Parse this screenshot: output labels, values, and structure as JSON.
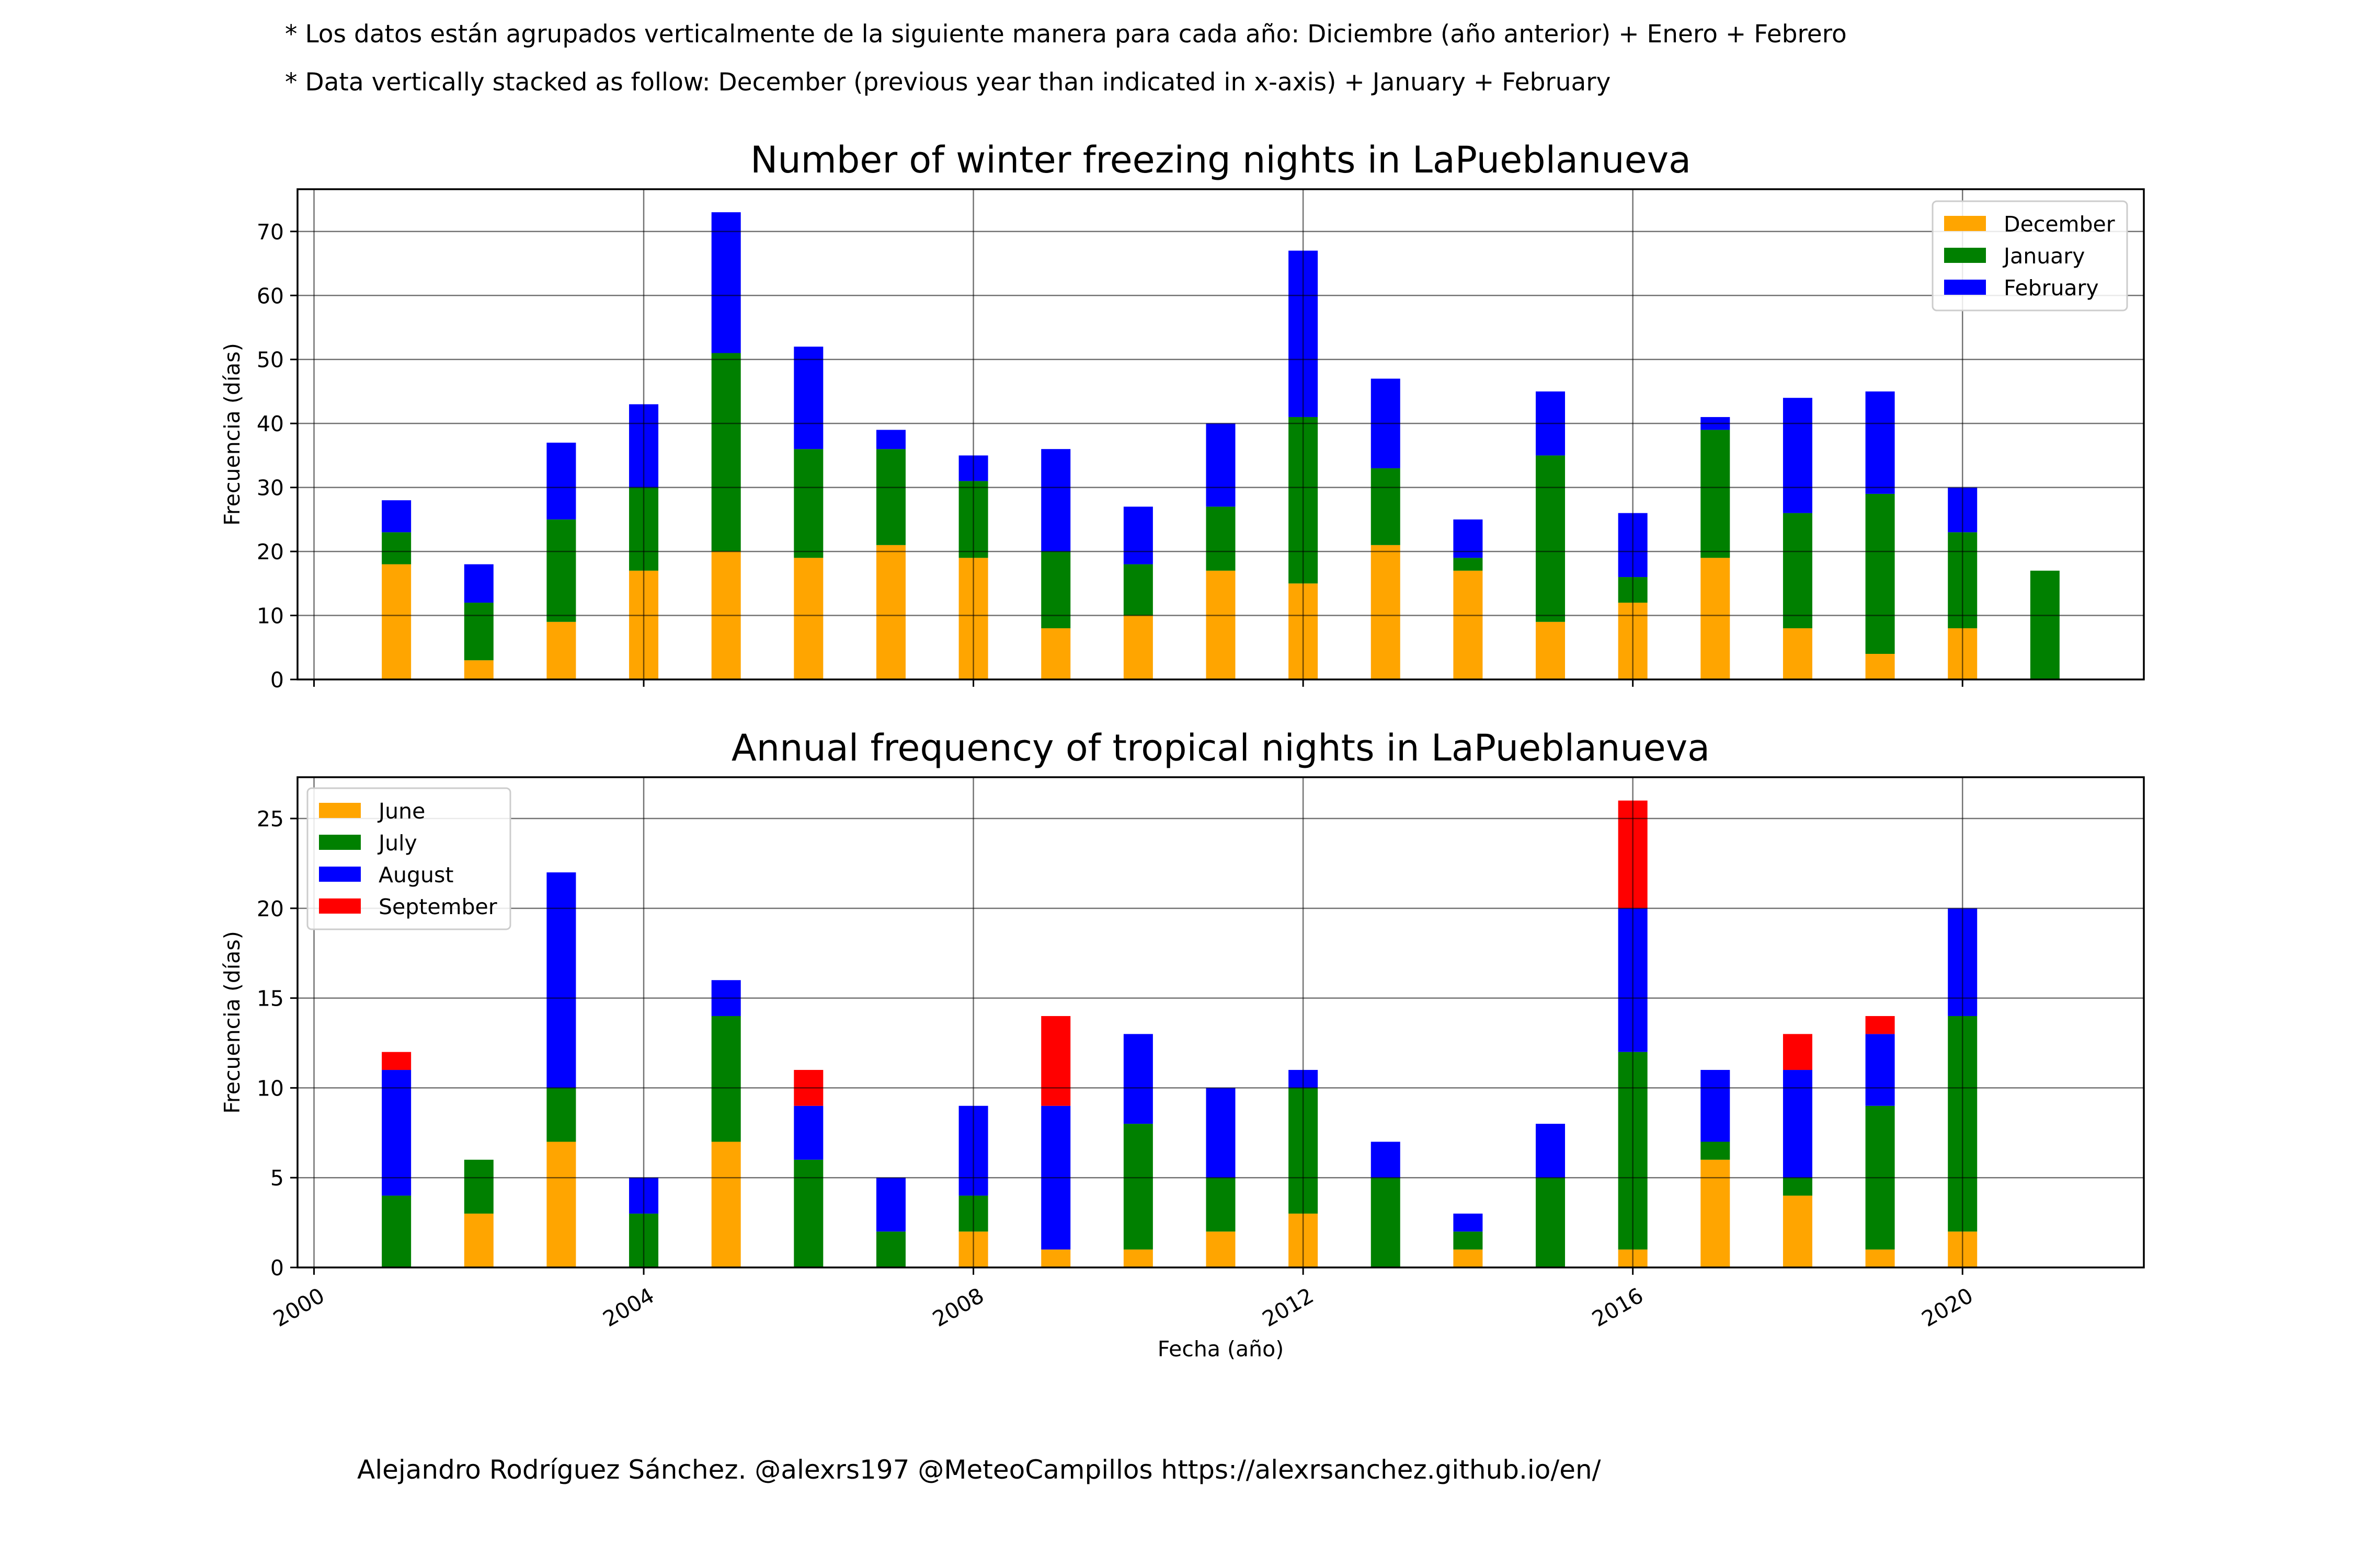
{
  "notes": {
    "es": "* Los datos están agrupados verticalmente de la siguiente manera para cada año: Diciembre (año anterior) + Enero  + Febrero",
    "en": "* Data vertically stacked as follow: December (previous year than indicated in x-axis) + January  + February"
  },
  "credit": "Alejandro Rodríguez Sánchez. @alexrs197 @MeteoCampillos   https://alexrsanchez.github.io/en/",
  "chart_data": [
    {
      "type": "bar",
      "stacked": true,
      "title": "Number of winter freezing nights in LaPueblanueva",
      "ylabel": "Frecuencia (días)",
      "xlabel": "",
      "x": [
        2001,
        2002,
        2003,
        2004,
        2005,
        2006,
        2007,
        2008,
        2009,
        2010,
        2011,
        2012,
        2013,
        2014,
        2015,
        2016,
        2017,
        2018,
        2019,
        2020,
        2021
      ],
      "series": [
        {
          "name": "December",
          "color": "#ffa500",
          "values": [
            18,
            3,
            9,
            17,
            20,
            19,
            21,
            19,
            8,
            10,
            17,
            15,
            21,
            17,
            9,
            12,
            19,
            8,
            4,
            8,
            0
          ]
        },
        {
          "name": "January",
          "color": "#008000",
          "values": [
            5,
            9,
            16,
            13,
            31,
            17,
            15,
            12,
            12,
            8,
            10,
            26,
            12,
            2,
            26,
            4,
            20,
            18,
            25,
            15,
            17
          ]
        },
        {
          "name": "February",
          "color": "#0000ff",
          "values": [
            5,
            6,
            12,
            13,
            22,
            16,
            3,
            4,
            16,
            9,
            13,
            26,
            14,
            6,
            10,
            10,
            2,
            18,
            16,
            7,
            0
          ]
        }
      ],
      "xlim": [
        1999.8,
        2022.2
      ],
      "ylim": [
        0,
        76.6
      ],
      "yticks": [
        0,
        10,
        20,
        30,
        40,
        50,
        60,
        70
      ],
      "xticks": [
        2000,
        2004,
        2008,
        2012,
        2016,
        2020
      ],
      "xtick_labels_visible": false,
      "grid": true,
      "legend": "top-right"
    },
    {
      "type": "bar",
      "stacked": true,
      "title": "Annual frequency of tropical nights in LaPueblanueva",
      "ylabel": "Frecuencia (días)",
      "xlabel": "Fecha (año)",
      "x": [
        2001,
        2002,
        2003,
        2004,
        2005,
        2006,
        2007,
        2008,
        2009,
        2010,
        2011,
        2012,
        2013,
        2014,
        2015,
        2016,
        2017,
        2018,
        2019,
        2020
      ],
      "series": [
        {
          "name": "June",
          "color": "#ffa500",
          "values": [
            0,
            3,
            7,
            0,
            7,
            0,
            0,
            2,
            1,
            1,
            2,
            3,
            0,
            1,
            0,
            1,
            6,
            4,
            1,
            2
          ]
        },
        {
          "name": "July",
          "color": "#008000",
          "values": [
            4,
            3,
            3,
            3,
            7,
            6,
            2,
            2,
            0,
            7,
            3,
            7,
            5,
            1,
            5,
            11,
            1,
            1,
            8,
            12
          ]
        },
        {
          "name": "August",
          "color": "#0000ff",
          "values": [
            7,
            0,
            12,
            2,
            2,
            3,
            3,
            5,
            8,
            5,
            5,
            1,
            2,
            1,
            3,
            8,
            4,
            6,
            4,
            6
          ]
        },
        {
          "name": "September",
          "color": "#ff0000",
          "values": [
            1,
            0,
            0,
            0,
            0,
            2,
            0,
            0,
            5,
            0,
            0,
            0,
            0,
            0,
            0,
            6,
            0,
            2,
            1,
            0
          ]
        }
      ],
      "xlim": [
        1999.8,
        2022.2
      ],
      "ylim": [
        0,
        27.3
      ],
      "yticks": [
        0,
        5,
        10,
        15,
        20,
        25
      ],
      "xticks": [
        2000,
        2004,
        2008,
        2012,
        2016,
        2020
      ],
      "xtick_labels": [
        "2000",
        "2004",
        "2008",
        "2012",
        "2016",
        "2020"
      ],
      "grid": true,
      "legend": "top-left"
    }
  ]
}
